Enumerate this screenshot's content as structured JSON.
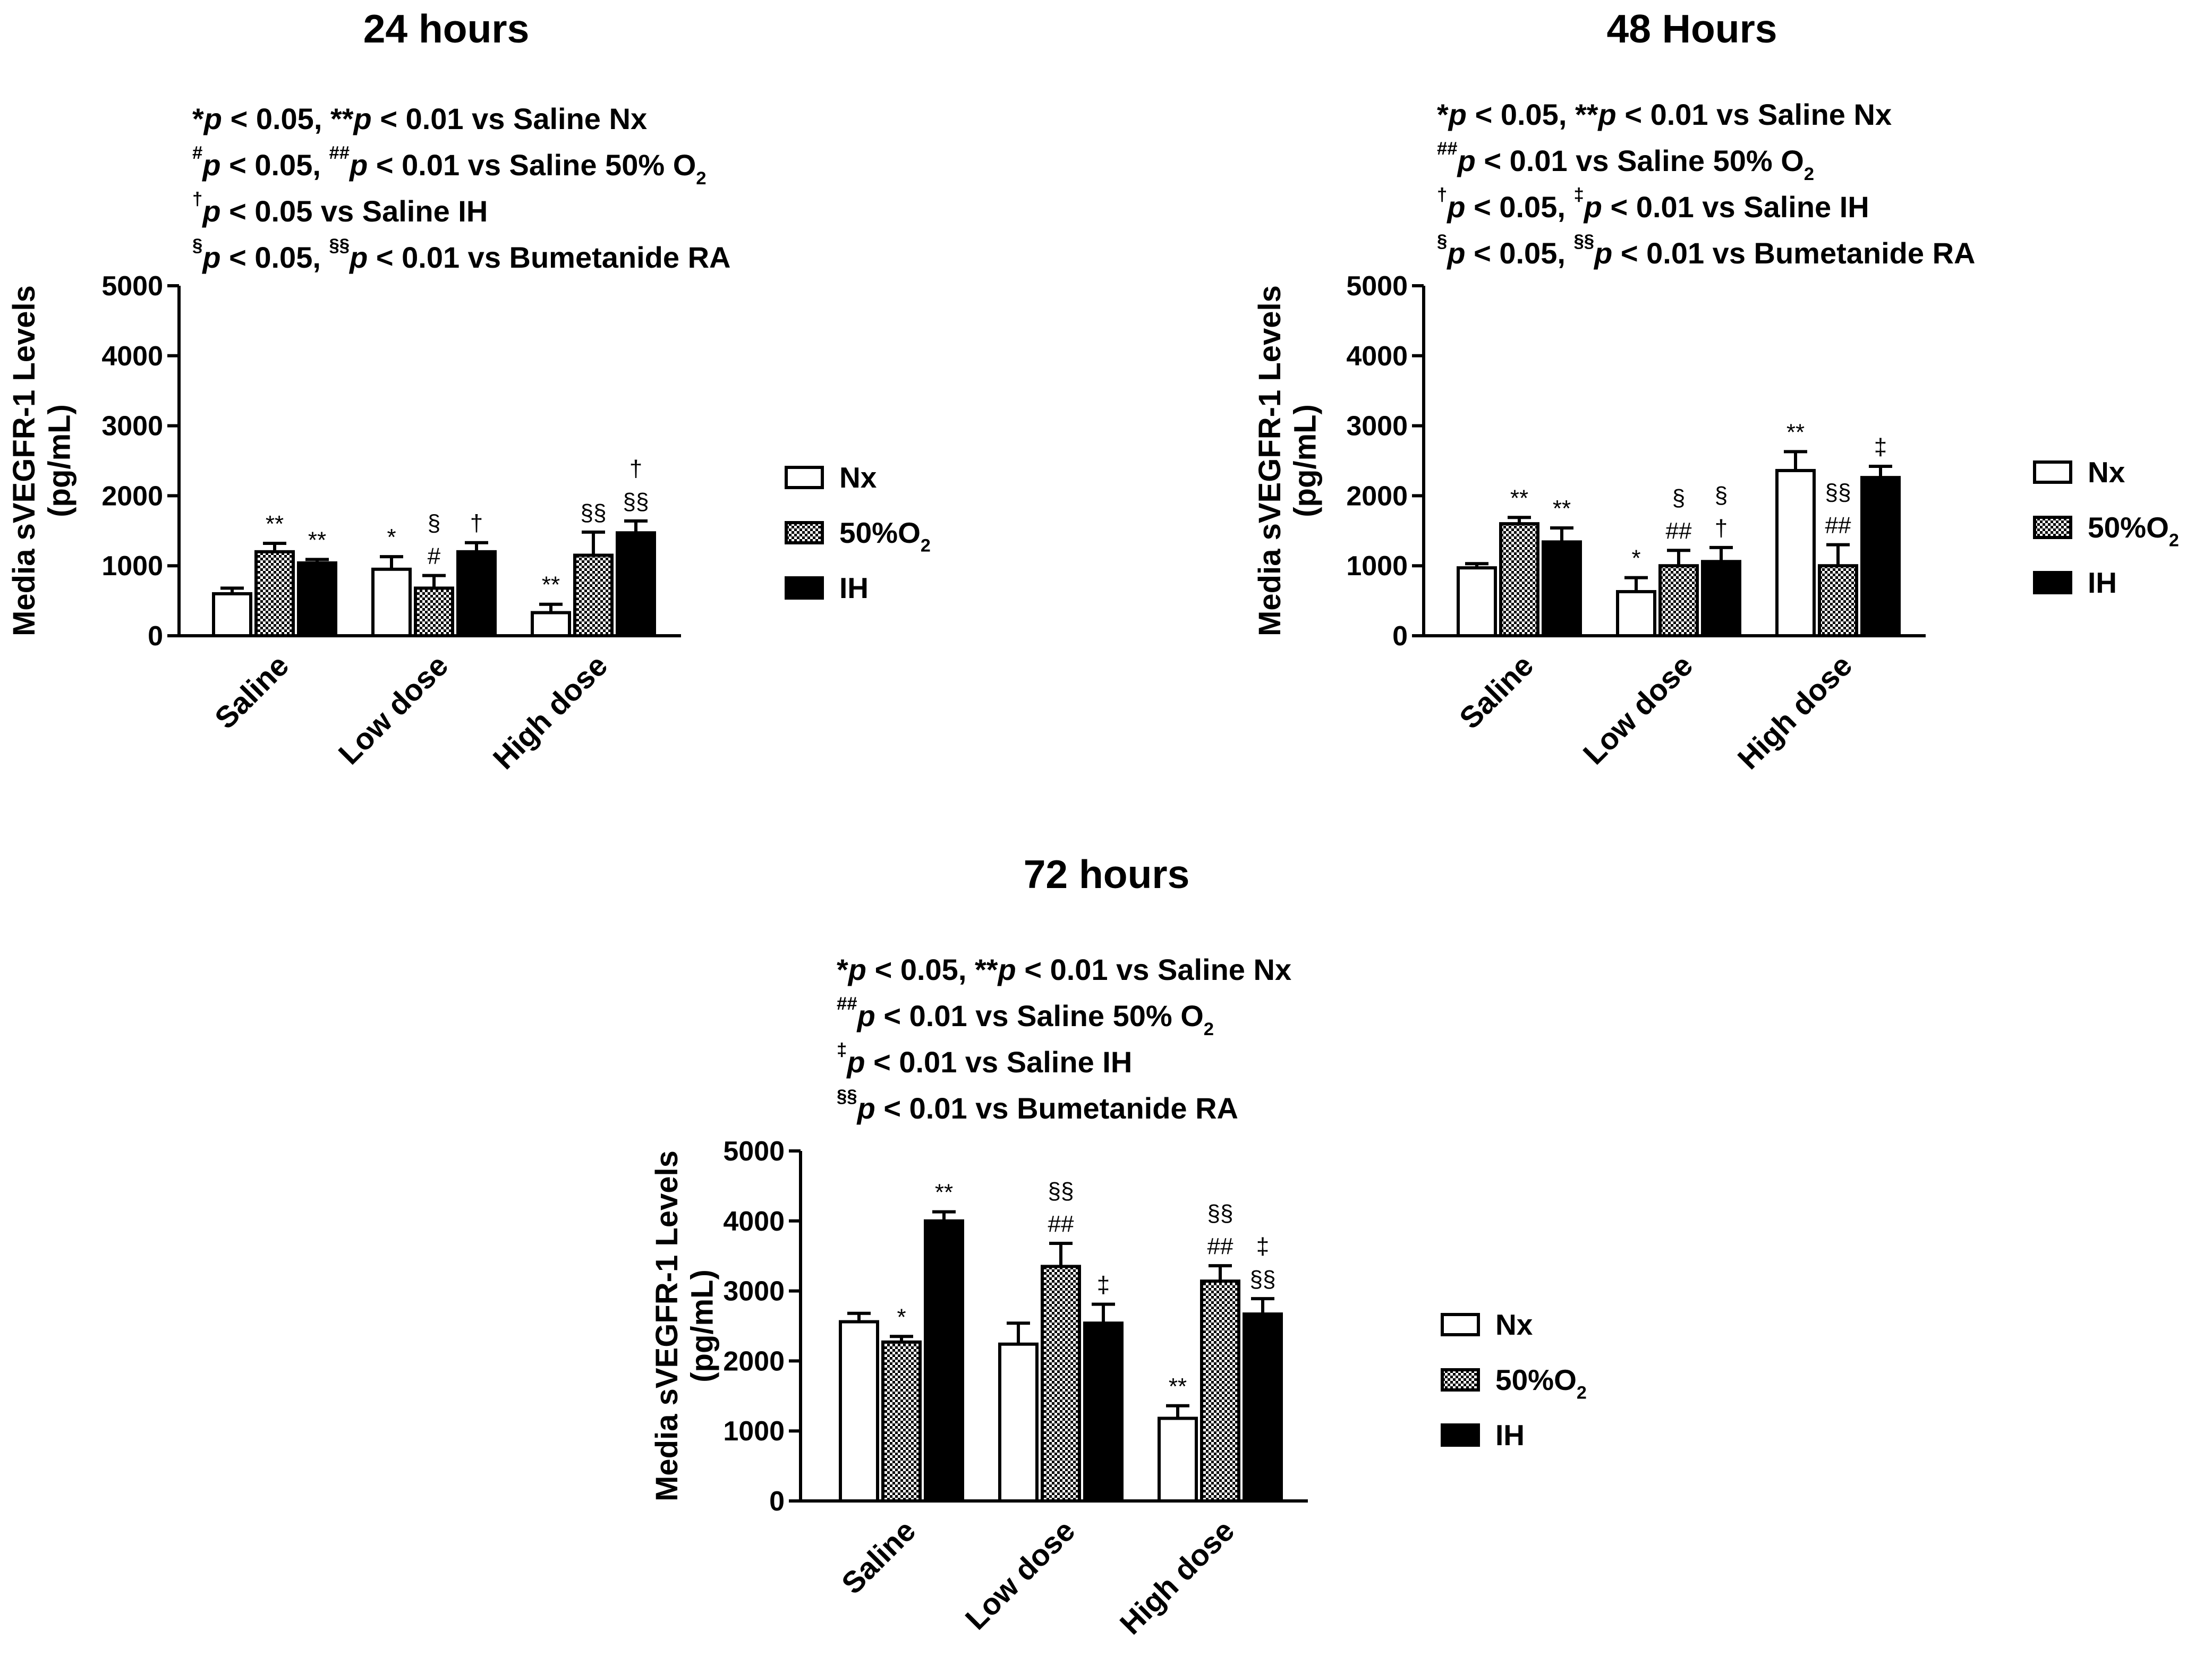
{
  "chart_data": [
    {
      "type": "bar",
      "title": "24 hours",
      "ylabel": "Media sVEGFR-1 Levels (pg/mL)",
      "ylabel_lines": [
        "Media sVEGFR-1 Levels",
        "(pg/mL)"
      ],
      "xlabel": "",
      "ylim": [
        0,
        5000
      ],
      "yticks": [
        "0",
        "1000",
        "2000",
        "3000",
        "4000",
        "5000"
      ],
      "grid": false,
      "legend_position": "right",
      "categories": [
        "Saline",
        "Low dose",
        "High dose"
      ],
      "series": [
        {
          "name": "Nx",
          "values": [
            600,
            950,
            330
          ],
          "errors": [
            80,
            180,
            120
          ],
          "significance": [
            "",
            "*",
            "**"
          ]
        },
        {
          "name": "50%O₂",
          "values": [
            1200,
            680,
            1150
          ],
          "errors": [
            120,
            180,
            330
          ],
          "significance": [
            "**",
            "#|§",
            "§§"
          ]
        },
        {
          "name": "IH",
          "values": [
            1040,
            1200,
            1470
          ],
          "errors": [
            50,
            130,
            170
          ],
          "significance": [
            "**",
            "†",
            "§§|†"
          ]
        }
      ],
      "notes": [
        "*p < 0.05, **p < 0.01 vs Saline Nx",
        "#p < 0.05, ##p < 0.01 vs Saline 50% O₂",
        "†p < 0.05 vs Saline IH",
        "§p < 0.05, §§p < 0.01 vs Bumetanide RA"
      ]
    },
    {
      "type": "bar",
      "title": "48 Hours",
      "ylabel": "Media sVEGFR-1 Levels (pg/mL)",
      "ylabel_lines": [
        "Media sVEGFR-1 Levels",
        "(pg/mL)"
      ],
      "xlabel": "",
      "ylim": [
        0,
        5000
      ],
      "yticks": [
        "0",
        "1000",
        "2000",
        "3000",
        "4000",
        "5000"
      ],
      "grid": false,
      "legend_position": "right",
      "categories": [
        "Saline",
        "Low dose",
        "High dose"
      ],
      "series": [
        {
          "name": "Nx",
          "values": [
            970,
            630,
            2360
          ],
          "errors": [
            60,
            200,
            270
          ],
          "significance": [
            "",
            "*",
            "**"
          ]
        },
        {
          "name": "50%O₂",
          "values": [
            1600,
            1000,
            1000
          ],
          "errors": [
            90,
            220,
            300
          ],
          "significance": [
            "**",
            "##|§",
            "##|§§"
          ]
        },
        {
          "name": "IH",
          "values": [
            1340,
            1060,
            2260
          ],
          "errors": [
            200,
            200,
            160
          ],
          "significance": [
            "**",
            "†|§",
            "‡"
          ]
        }
      ],
      "notes": [
        "*p < 0.05, **p < 0.01 vs Saline Nx",
        "##p < 0.01 vs Saline 50% O₂",
        "†p < 0.05, ‡p < 0.01 vs Saline IH",
        "§p < 0.05, §§p < 0.01 vs Bumetanide RA"
      ]
    },
    {
      "type": "bar",
      "title": "72 hours",
      "ylabel": "Media sVEGFR-1 Levels (pg/mL)",
      "ylabel_lines": [
        "Media sVEGFR-1 Levels",
        "(pg/mL)"
      ],
      "xlabel": "",
      "ylim": [
        0,
        5000
      ],
      "yticks": [
        "0",
        "1000",
        "2000",
        "3000",
        "4000",
        "5000"
      ],
      "grid": false,
      "legend_position": "right",
      "categories": [
        "Saline",
        "Low dose",
        "High dose"
      ],
      "series": [
        {
          "name": "Nx",
          "values": [
            2560,
            2240,
            1180
          ],
          "errors": [
            120,
            300,
            180
          ],
          "significance": [
            "",
            "",
            "**"
          ]
        },
        {
          "name": "50%O₂",
          "values": [
            2270,
            3350,
            3140
          ],
          "errors": [
            80,
            330,
            220
          ],
          "significance": [
            "*",
            "##|§§",
            "##|§§"
          ]
        },
        {
          "name": "IH",
          "values": [
            4000,
            2540,
            2670
          ],
          "errors": [
            130,
            270,
            220
          ],
          "significance": [
            "**",
            "‡",
            "§§|‡"
          ]
        }
      ],
      "notes": [
        "*p < 0.05, **p < 0.01 vs Saline Nx",
        "##p < 0.01 vs Saline 50% O₂",
        "‡p < 0.01 vs Saline IH",
        "§§p < 0.01 vs Bumetanide RA"
      ]
    }
  ],
  "colors": {
    "nx_fill": "#ffffff",
    "o2_fill": "#9a9a9a",
    "ih_fill": "#000000",
    "stroke": "#000000"
  }
}
